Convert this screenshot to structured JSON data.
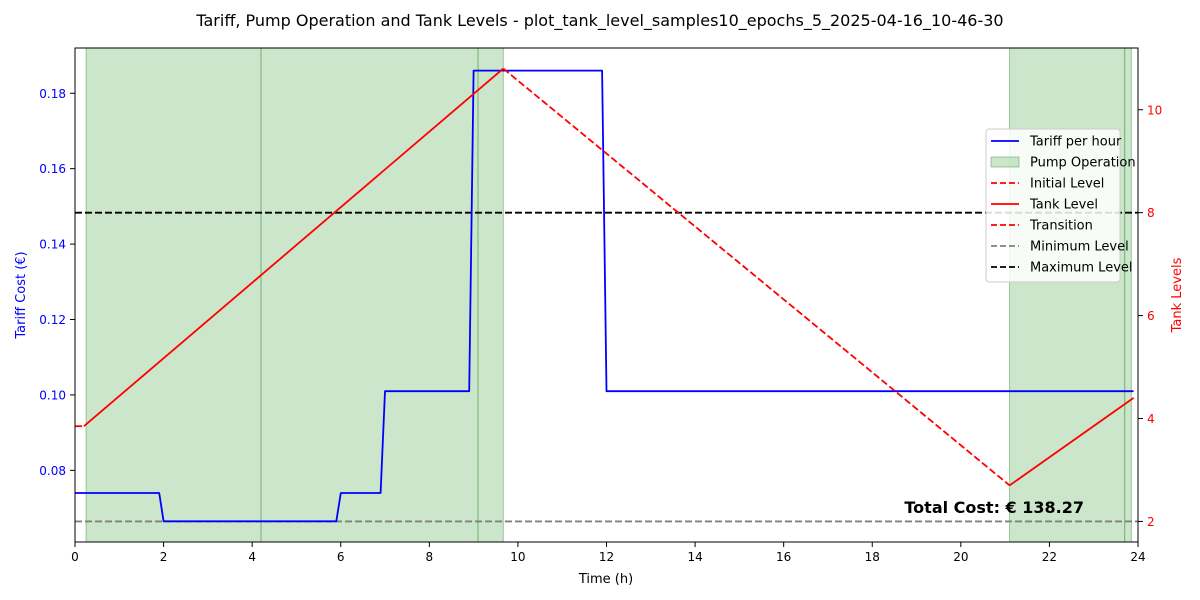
{
  "chart_data": {
    "type": "line",
    "title": "Tariff, Pump Operation and Tank Levels - plot_tank_level_samples10_epochs_5_2025-04-16_10-46-30",
    "xlabel": "Time (h)",
    "ylabel_left": "Tariff Cost (€)",
    "ylabel_right": "Tank Levels",
    "xlim": [
      0,
      24
    ],
    "ylim_left": [
      0.061,
      0.192
    ],
    "ylim_right": [
      1.6,
      11.2
    ],
    "xticks": [
      "0",
      "2",
      "4",
      "6",
      "8",
      "10",
      "12",
      "14",
      "16",
      "18",
      "20",
      "22",
      "24"
    ],
    "yticks_left": [
      "0.08",
      "0.10",
      "0.12",
      "0.14",
      "0.16",
      "0.18"
    ],
    "yticks_right": [
      "2",
      "4",
      "6",
      "8",
      "10"
    ],
    "grid": false,
    "legend_position": "right",
    "colors": {
      "tariff": "#0000ff",
      "tank": "#ff0000",
      "pump": "#a8d5a8",
      "pump_edge": "#4f9a4f",
      "min_level": "#808080",
      "max_level": "#000000",
      "left_axis": "#0000ff",
      "right_axis": "#ff0000"
    },
    "annotation": "Total Cost: € 138.27",
    "legend": [
      {
        "key": "tariff",
        "label": "Tariff per hour",
        "style": "solid-line"
      },
      {
        "key": "pump",
        "label": "Pump Operation",
        "style": "patch"
      },
      {
        "key": "initial",
        "label": "Initial Level",
        "style": "dashed-line"
      },
      {
        "key": "tank",
        "label": "Tank Level",
        "style": "solid-line"
      },
      {
        "key": "transition",
        "label": "Transition",
        "style": "dashed-line"
      },
      {
        "key": "min",
        "label": "Minimum Level",
        "style": "dashed-line"
      },
      {
        "key": "max",
        "label": "Maximum Level",
        "style": "dashed-line"
      }
    ],
    "pump_operation": [
      {
        "start": 0.25,
        "end": 4.2
      },
      {
        "start": 4.2,
        "end": 9.1
      },
      {
        "start": 9.1,
        "end": 9.67
      },
      {
        "start": 21.1,
        "end": 23.7
      },
      {
        "start": 23.7,
        "end": 23.85
      }
    ],
    "tariff": {
      "x": [
        0,
        1.9,
        2.0,
        5.9,
        6.0,
        6.9,
        7.0,
        8.9,
        9.0,
        11.9,
        12.0,
        23.9
      ],
      "y": [
        0.074,
        0.074,
        0.0665,
        0.0665,
        0.074,
        0.074,
        0.101,
        0.101,
        0.186,
        0.186,
        0.101,
        0.101
      ]
    },
    "initial_level": {
      "x": [
        0,
        0.2
      ],
      "y": [
        3.85,
        3.85
      ]
    },
    "tank_level": [
      {
        "x": [
          0.2,
          9.67
        ],
        "y": [
          3.85,
          10.8
        ]
      },
      {
        "x": [
          21.1,
          23.9
        ],
        "y": [
          2.7,
          4.4
        ]
      }
    ],
    "transition": {
      "x": [
        9.67,
        21.1
      ],
      "y": [
        10.8,
        2.7
      ]
    },
    "minimum_level": 2,
    "maximum_level": 8
  }
}
